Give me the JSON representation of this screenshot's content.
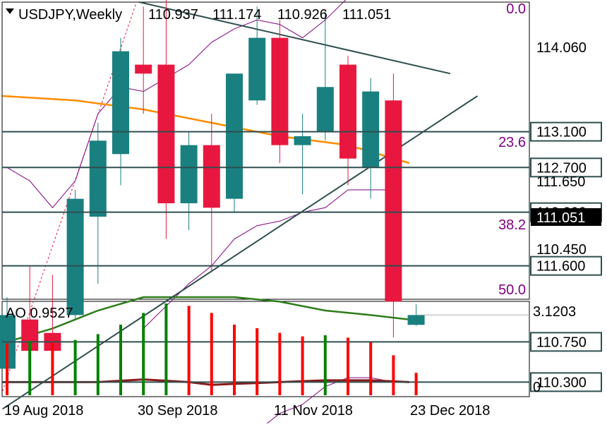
{
  "header": {
    "symbol": "USDJPY,Weekly",
    "ohlc": [
      "110.937",
      "111.174",
      "110.926",
      "111.051"
    ]
  },
  "colors": {
    "bull": "#1a7f7f",
    "bear": "#e8173f",
    "ma_orange": "#ff8c00",
    "ma_green": "#2e7d1a",
    "ma_dark_red": "#8b1a1a",
    "envelope": "#800080",
    "fib_text": "#800080",
    "hline": "#2f4f4f",
    "ao_up": "#008000",
    "ao_down": "#ff0000"
  },
  "chart_data": [
    {
      "type": "candlestick",
      "title": "USDJPY,Weekly",
      "x_ticks": [
        "19 Aug 2018",
        "30 Sep 2018",
        "11 Nov 2018",
        "23 Dec 2018"
      ],
      "y_ticks": [
        "114.060",
        "111.650",
        "110.450"
      ],
      "current_price": "111.051",
      "candles": [
        {
          "o": 110.45,
          "h": 111.25,
          "l": 110.45,
          "c": 111.05
        },
        {
          "o": 111.0,
          "h": 111.6,
          "l": 110.5,
          "c": 110.65
        },
        {
          "o": 110.85,
          "h": 111.5,
          "l": 110.2,
          "c": 110.65
        },
        {
          "o": 111.05,
          "h": 112.45,
          "l": 111.0,
          "c": 112.35
        },
        {
          "o": 112.15,
          "h": 113.2,
          "l": 111.4,
          "c": 113.0
        },
        {
          "o": 112.85,
          "h": 114.15,
          "l": 112.5,
          "c": 114.0
        },
        {
          "o": 113.85,
          "h": 114.5,
          "l": 113.3,
          "c": 113.75
        },
        {
          "o": 113.85,
          "h": 114.6,
          "l": 111.9,
          "c": 112.3
        },
        {
          "o": 112.3,
          "h": 113.1,
          "l": 112.0,
          "c": 112.95
        },
        {
          "o": 112.95,
          "h": 113.3,
          "l": 111.55,
          "c": 112.25
        },
        {
          "o": 112.35,
          "h": 113.75,
          "l": 112.2,
          "c": 113.75
        },
        {
          "o": 113.45,
          "h": 114.5,
          "l": 113.4,
          "c": 114.15
        },
        {
          "o": 114.15,
          "h": 114.35,
          "l": 112.75,
          "c": 112.95
        },
        {
          "o": 112.95,
          "h": 113.3,
          "l": 112.4,
          "c": 113.05
        },
        {
          "o": 113.1,
          "h": 114.45,
          "l": 113.0,
          "c": 113.6
        },
        {
          "o": 113.85,
          "h": 113.95,
          "l": 112.5,
          "c": 112.8
        },
        {
          "o": 112.7,
          "h": 113.7,
          "l": 112.35,
          "c": 113.55
        },
        {
          "o": 113.45,
          "h": 113.75,
          "l": 110.8,
          "c": 111.2
        },
        {
          "o": 110.94,
          "h": 111.17,
          "l": 110.93,
          "c": 111.05
        }
      ],
      "horizontal_levels": [
        {
          "price": 113.1,
          "label": "113.100"
        },
        {
          "price": 112.7,
          "label": "112.700"
        },
        {
          "price": 112.2,
          "label": "112.200"
        },
        {
          "price": 111.6,
          "label": "111.600"
        },
        {
          "price": 110.75,
          "label": "110.750"
        },
        {
          "price": 110.3,
          "label": "110.300"
        }
      ],
      "fibonacci_labels": [
        "0.0",
        "23.6",
        "38.2",
        "50.0"
      ]
    },
    {
      "type": "bar",
      "title": "AO 0.9527",
      "y_ticks": [
        "3.1203",
        "0"
      ],
      "values": [
        2.2,
        2.3,
        2.25,
        2.35,
        2.6,
        3.0,
        3.5,
        3.9,
        3.8,
        3.5,
        3.0,
        2.85,
        2.65,
        2.5,
        2.55,
        2.45,
        2.25,
        1.7,
        0.9527
      ],
      "colors": [
        "down",
        "up",
        "down",
        "up",
        "up",
        "up",
        "up",
        "up",
        "down",
        "down",
        "down",
        "down",
        "down",
        "down",
        "up",
        "down",
        "down",
        "down",
        "down"
      ]
    }
  ]
}
